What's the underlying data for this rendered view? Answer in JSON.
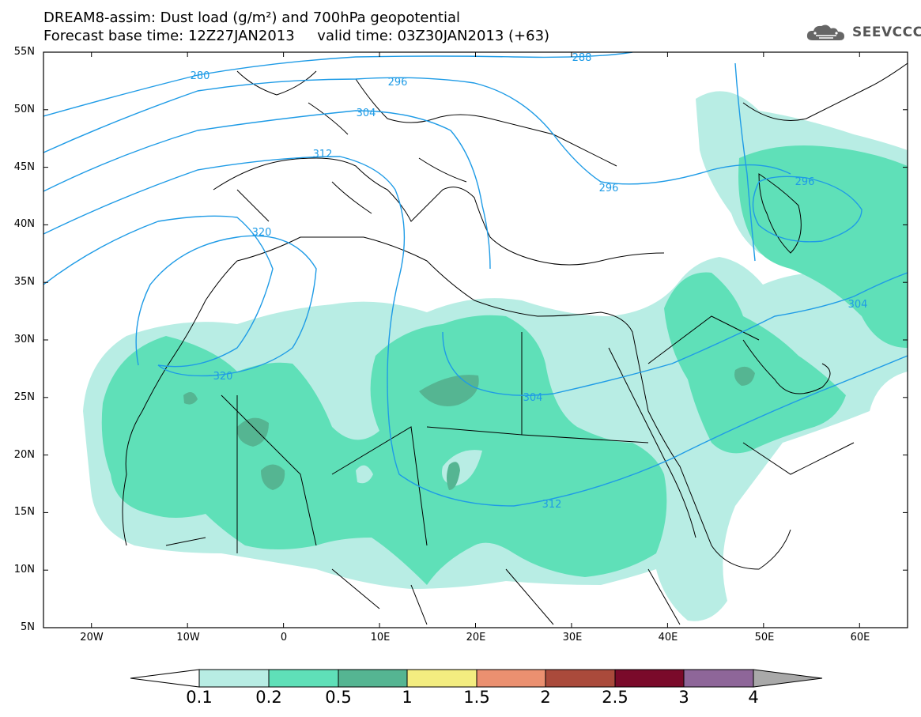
{
  "title": {
    "line1": "DREAM8-assim: Dust load (g/m²) and 700hPa geopotential",
    "line2": "Forecast base time: 12Z27JAN2013     valid time: 03Z30JAN2013 (+63)"
  },
  "logo": {
    "text": "SEEVCCC",
    "icon": "cloud-icon"
  },
  "map": {
    "lon_range": [
      -25,
      65
    ],
    "lat_range": [
      5,
      55
    ],
    "lat_ticks": [
      "5N",
      "10N",
      "15N",
      "20N",
      "25N",
      "30N",
      "35N",
      "40N",
      "45N",
      "50N",
      "55N"
    ],
    "lon_ticks": [
      "20W",
      "10W",
      "0",
      "10E",
      "20E",
      "30E",
      "40E",
      "50E",
      "60E"
    ],
    "contour_labels": [
      "288",
      "280",
      "296",
      "304",
      "312",
      "296",
      "320",
      "320",
      "304",
      "304",
      "312"
    ]
  },
  "colorbar": {
    "levels": [
      "0.1",
      "0.2",
      "0.5",
      "1",
      "1.5",
      "2",
      "2.5",
      "3",
      "4"
    ],
    "colors": [
      "#b8ede4",
      "#5fe0b8",
      "#55b592",
      "#f3ed80",
      "#eb9070",
      "#aa4a3b",
      "#7a0a2a",
      "#8e6699",
      "#a9a9a9"
    ]
  }
}
